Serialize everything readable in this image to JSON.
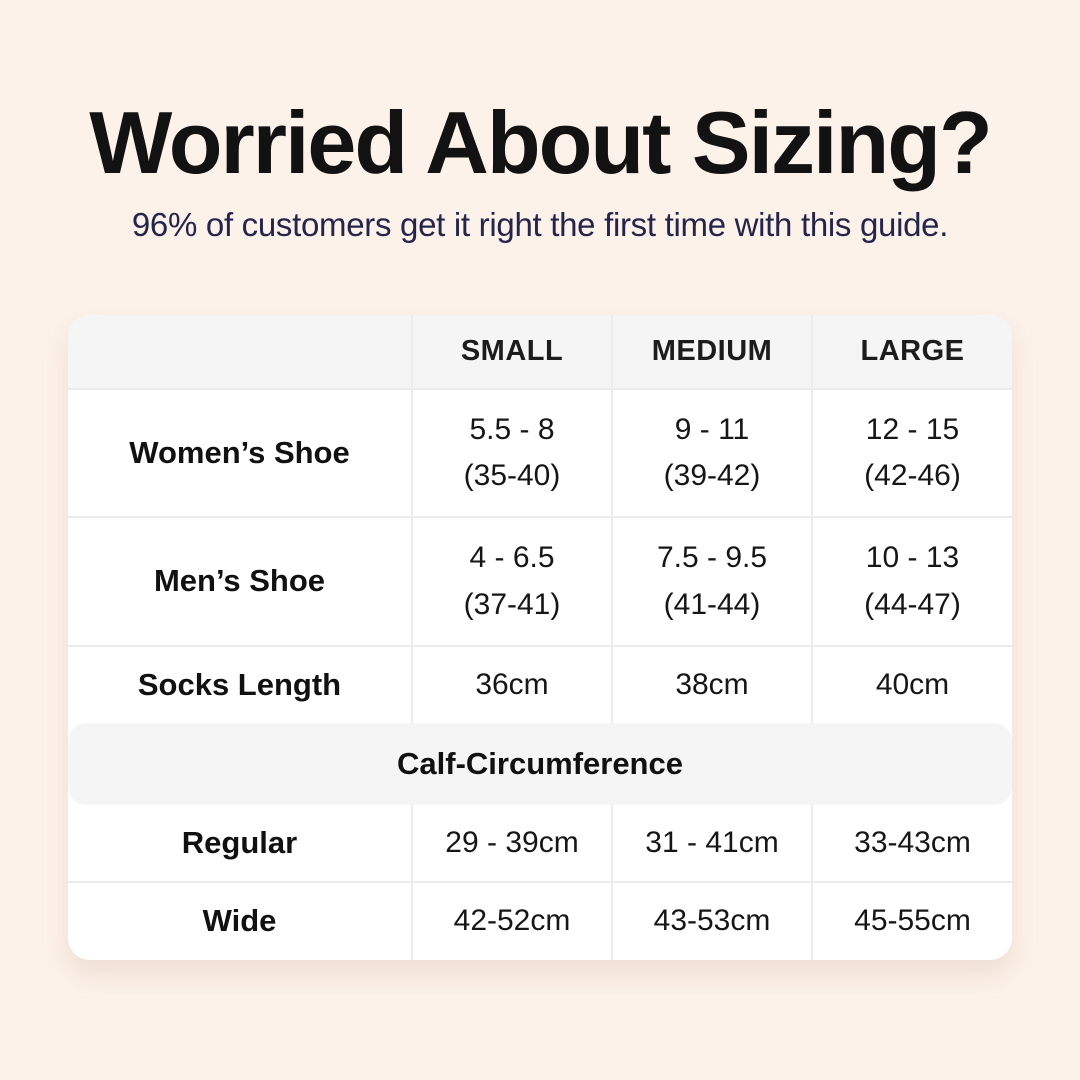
{
  "page": {
    "title": "Worried About Sizing?",
    "subtitle": "96% of customers get it right the first time with this guide.",
    "colors": {
      "background": "#fcf2ea",
      "title_text": "#121212",
      "subtitle_text": "#23254a",
      "table_background": "#ffffff",
      "band_background": "#f5f5f6",
      "grid_line": "#ececec",
      "table_text": "#161616"
    }
  },
  "table": {
    "columns": [
      "",
      "SMALL",
      "MEDIUM",
      "LARGE"
    ],
    "shoe_rows": [
      {
        "label": "Women’s Shoe",
        "small": {
          "line1": "5.5 - 8",
          "line2": "(35-40)"
        },
        "medium": {
          "line1": "9 - 11",
          "line2": "(39-42)"
        },
        "large": {
          "line1": "12 - 15",
          "line2": "(42-46)"
        }
      },
      {
        "label": "Men’s Shoe",
        "small": {
          "line1": "4 - 6.5",
          "line2": "(37-41)"
        },
        "medium": {
          "line1": "7.5 - 9.5",
          "line2": "(41-44)"
        },
        "large": {
          "line1": "10 - 13",
          "line2": "(44-47)"
        }
      }
    ],
    "socks_row": {
      "label": "Socks Length",
      "small": "36cm",
      "medium": "38cm",
      "large": "40cm"
    },
    "section_label": "Calf-Circumference",
    "calf_rows": [
      {
        "label": "Regular",
        "small": "29 - 39cm",
        "medium": "31 - 41cm",
        "large": "33-43cm"
      },
      {
        "label": "Wide",
        "small": "42-52cm",
        "medium": "43-53cm",
        "large": "45-55cm"
      }
    ]
  }
}
